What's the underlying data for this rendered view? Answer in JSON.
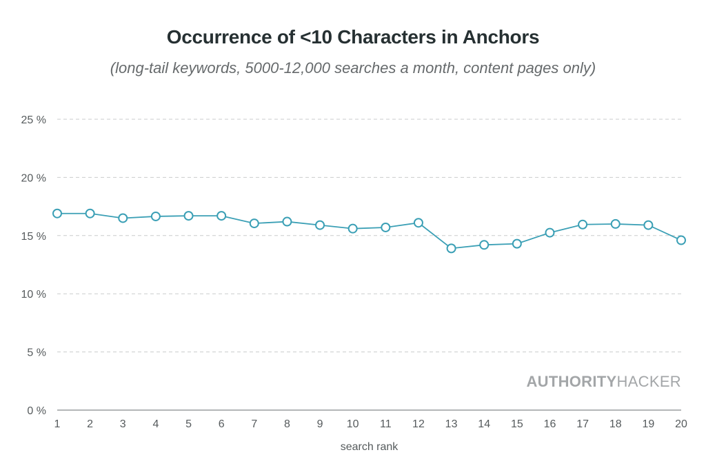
{
  "chart_data": {
    "type": "line",
    "title": "Occurrence of <10 Characters in Anchors",
    "subtitle": "(long-tail keywords, 5000-12,000 searches a month, content pages only)",
    "xlabel": "search rank",
    "ylabel": "",
    "x": [
      1,
      2,
      3,
      4,
      5,
      6,
      7,
      8,
      9,
      10,
      11,
      12,
      13,
      14,
      15,
      16,
      17,
      18,
      19,
      20
    ],
    "series": [
      {
        "name": "Occurrence of <10 characters",
        "values": [
          16.9,
          16.9,
          16.5,
          16.65,
          16.7,
          16.7,
          16.05,
          16.2,
          15.9,
          15.6,
          15.7,
          16.1,
          13.9,
          14.2,
          14.3,
          15.25,
          15.95,
          16.0,
          15.9,
          14.6
        ],
        "color": "#3a9fb5"
      }
    ],
    "ylim": [
      0,
      25
    ],
    "yticks": [
      0,
      5,
      10,
      15,
      20,
      25
    ],
    "ytick_labels": [
      "0 %",
      "5 %",
      "10 %",
      "15 %",
      "20 %",
      "25 %"
    ],
    "xtick_labels": [
      "1",
      "2",
      "3",
      "4",
      "5",
      "6",
      "7",
      "8",
      "9",
      "10",
      "11",
      "12",
      "13",
      "14",
      "15",
      "16",
      "17",
      "18",
      "19",
      "20"
    ],
    "grid": true,
    "legend": "none"
  },
  "watermark": {
    "bold_part": "AUTHORITY",
    "light_part": "HACKER"
  }
}
